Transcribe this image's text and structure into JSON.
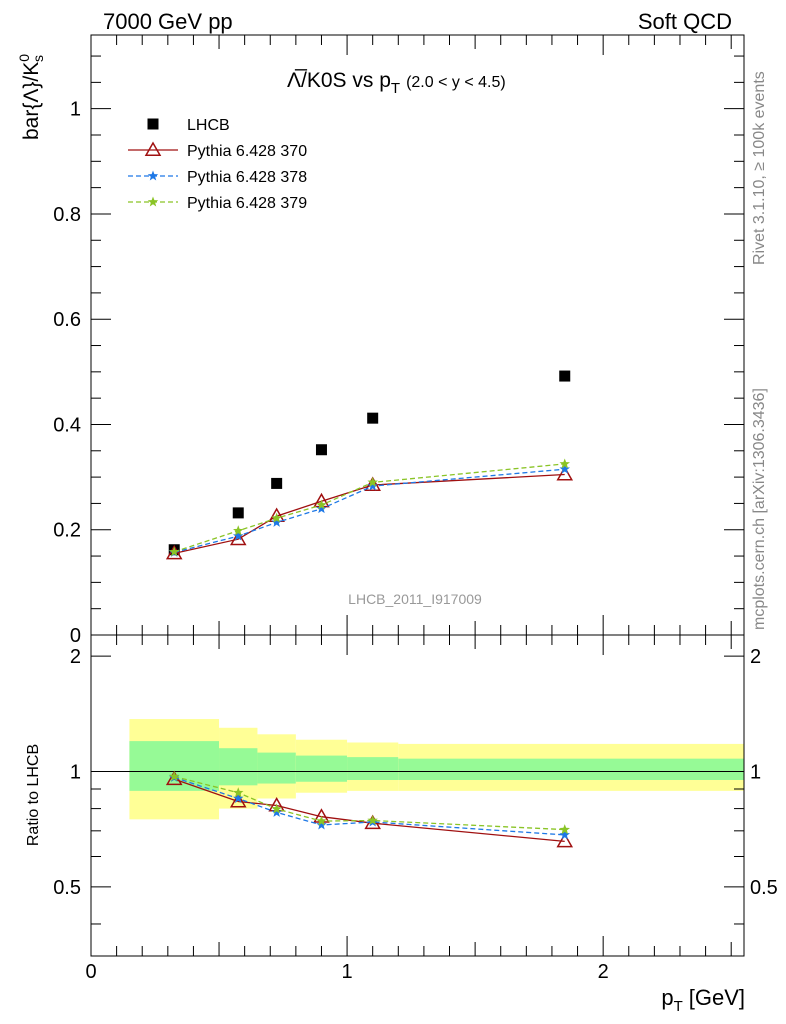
{
  "header": {
    "left": "7000 GeV pp",
    "right": "Soft QCD"
  },
  "side_labels": {
    "rivet": "Rivet 3.1.10, ≥ 100k events",
    "mcplots": "mcplots.cern.ch [arXiv:1306.3436]"
  },
  "chart_data": [
    {
      "type": "scatter",
      "title": "Λ̅/K0S vs p",
      "title_sub": "T",
      "title_range": "(2.0 < y < 4.5)",
      "ylabel": "bar{Λ}/K",
      "ylabel_sup": "0",
      "ylabel_sub": "s",
      "xlim": [
        0,
        2.55
      ],
      "ylim": [
        0,
        1.14
      ],
      "yticks": [
        0,
        0.2,
        0.4,
        0.6,
        0.8,
        1
      ],
      "ytick_labels": [
        "0",
        "0.2",
        "0.4",
        "0.6",
        "0.8",
        "1"
      ],
      "watermark": "LHCB_2011_I917009",
      "legend_position": "top-left",
      "series": [
        {
          "name": "LHCB",
          "color": "#000000",
          "marker": "square",
          "x": [
            0.325,
            0.575,
            0.725,
            0.9,
            1.1,
            1.85
          ],
          "y": [
            0.162,
            0.232,
            0.288,
            0.352,
            0.412,
            0.492
          ]
        },
        {
          "name": "Pythia 6.428 370",
          "color": "#a01010",
          "marker": "triangle-open",
          "dash": "solid",
          "x": [
            0.325,
            0.575,
            0.725,
            0.9,
            1.1,
            1.85
          ],
          "y": [
            0.155,
            0.182,
            0.226,
            0.254,
            0.285,
            0.305
          ]
        },
        {
          "name": "Pythia 6.428 378",
          "color": "#1e78e6",
          "marker": "star",
          "dash": "dashed",
          "x": [
            0.325,
            0.575,
            0.725,
            0.9,
            1.1,
            1.85
          ],
          "y": [
            0.157,
            0.188,
            0.214,
            0.24,
            0.283,
            0.315
          ]
        },
        {
          "name": "Pythia 6.428 379",
          "color": "#8ac426",
          "marker": "star",
          "dash": "dashed",
          "x": [
            0.325,
            0.575,
            0.725,
            0.9,
            1.1,
            1.85
          ],
          "y": [
            0.158,
            0.198,
            0.222,
            0.247,
            0.29,
            0.325
          ]
        }
      ]
    },
    {
      "type": "line",
      "ylabel": "Ratio to LHCB",
      "xlabel": "p",
      "xlabel_sub": "T",
      "xlabel_unit": "[GeV]",
      "xlim": [
        0,
        2.55
      ],
      "ylim": [
        0.33,
        2.27
      ],
      "xticks": [
        0,
        1,
        2
      ],
      "xtick_labels": [
        "0",
        "1",
        "2"
      ],
      "yticks": [
        0.5,
        1,
        2
      ],
      "ytick_labels": [
        "0.5",
        "1",
        "2"
      ],
      "bands": {
        "bins": [
          0.15,
          0.5,
          0.65,
          0.8,
          1.0,
          1.2,
          2.55
        ],
        "yellow": [
          [
            0.75,
            1.37
          ],
          [
            0.8,
            1.3
          ],
          [
            0.85,
            1.25
          ],
          [
            0.88,
            1.21
          ],
          [
            0.89,
            1.19
          ],
          [
            0.89,
            1.18
          ]
        ],
        "green": [
          [
            0.89,
            1.2
          ],
          [
            0.92,
            1.15
          ],
          [
            0.93,
            1.12
          ],
          [
            0.94,
            1.1
          ],
          [
            0.95,
            1.09
          ],
          [
            0.95,
            1.08
          ]
        ]
      },
      "series": [
        {
          "name": "Pythia 6.428 370",
          "color": "#a01010",
          "marker": "triangle-open",
          "dash": "solid",
          "x": [
            0.325,
            0.575,
            0.725,
            0.9,
            1.1,
            1.85
          ],
          "y": [
            0.955,
            0.835,
            0.815,
            0.762,
            0.733,
            0.657
          ]
        },
        {
          "name": "Pythia 6.428 378",
          "color": "#1e78e6",
          "marker": "star",
          "dash": "dashed",
          "x": [
            0.325,
            0.575,
            0.725,
            0.9,
            1.1,
            1.85
          ],
          "y": [
            0.965,
            0.85,
            0.782,
            0.725,
            0.738,
            0.683
          ]
        },
        {
          "name": "Pythia 6.428 379",
          "color": "#8ac426",
          "marker": "star",
          "dash": "dashed",
          "x": [
            0.325,
            0.575,
            0.725,
            0.9,
            1.1,
            1.85
          ],
          "y": [
            0.97,
            0.88,
            0.798,
            0.742,
            0.745,
            0.705
          ]
        }
      ]
    }
  ]
}
